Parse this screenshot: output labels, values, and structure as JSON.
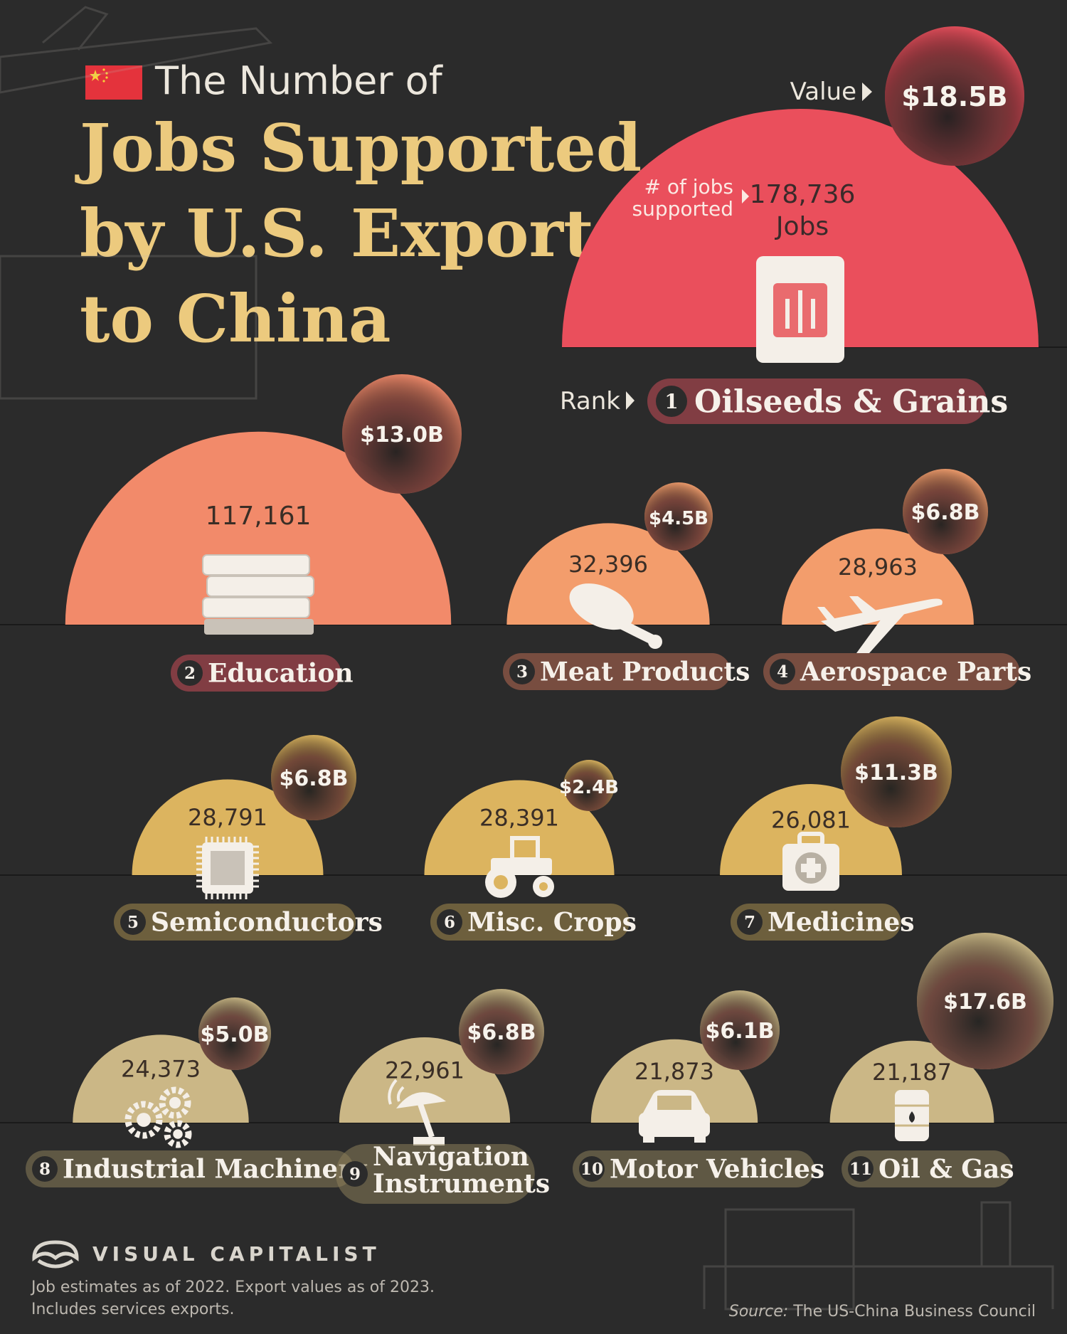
{
  "header": {
    "title_line1": "The Number of",
    "title_lines": [
      "Jobs Supported",
      "by U.S. Exports",
      "to China"
    ]
  },
  "legend": {
    "value_label": "Value",
    "jobs_label_line1": "# of jobs",
    "jobs_label_line2": "supported",
    "jobs_unit": "Jobs",
    "rank_label": "Rank"
  },
  "colors": {
    "background": "#2b2b2b",
    "tier_red": "#e8525d",
    "tier_orange": "#f39a6a",
    "tier_gold": "#d9b25e",
    "tier_sand": "#cbb786",
    "title_gold": "#ecca7e",
    "text_light": "#ece7dd",
    "text_dark": "#2b2b2b"
  },
  "chart_data": {
    "type": "bubble-semicircle",
    "title": "The Number of Jobs Supported by U.S. Exports to China",
    "items": [
      {
        "rank": 1,
        "name": "Oilseeds & Grains",
        "jobs": 178736,
        "jobs_label": "178,736",
        "value_label": "$18.5B",
        "value": 18.5,
        "icon": "grain-sack-icon",
        "color": "#ea4f5c"
      },
      {
        "rank": 2,
        "name": "Education",
        "jobs": 117161,
        "jobs_label": "117,161",
        "value_label": "$13.0B",
        "value": 13.0,
        "icon": "books-icon",
        "color": "#f28a6a"
      },
      {
        "rank": 3,
        "name": "Meat Products",
        "jobs": 32396,
        "jobs_label": "32,396",
        "value_label": "$4.5B",
        "value": 4.5,
        "icon": "drumstick-icon",
        "color": "#f39d6c"
      },
      {
        "rank": 4,
        "name": "Aerospace Parts",
        "jobs": 28963,
        "jobs_label": "28,963",
        "value_label": "$6.8B",
        "value": 6.8,
        "icon": "airplane-icon",
        "color": "#f39d6c"
      },
      {
        "rank": 5,
        "name": "Semiconductors",
        "jobs": 28791,
        "jobs_label": "28,791",
        "value_label": "$6.8B",
        "value": 6.8,
        "icon": "chip-icon",
        "color": "#dcb45f"
      },
      {
        "rank": 6,
        "name": "Misc. Crops",
        "jobs": 28391,
        "jobs_label": "28,391",
        "value_label": "$2.4B",
        "value": 2.4,
        "icon": "tractor-icon",
        "color": "#dcb45f"
      },
      {
        "rank": 7,
        "name": "Medicines",
        "jobs": 26081,
        "jobs_label": "26,081",
        "value_label": "$11.3B",
        "value": 11.3,
        "icon": "medkit-icon",
        "color": "#dcb45f"
      },
      {
        "rank": 8,
        "name": "Industrial Machinery",
        "jobs": 24373,
        "jobs_label": "24,373",
        "value_label": "$5.0B",
        "value": 5.0,
        "icon": "gears-icon",
        "color": "#cbb786"
      },
      {
        "rank": 9,
        "name": "Navigation Instruments",
        "name_lines": [
          "Navigation",
          "Instruments"
        ],
        "jobs": 22961,
        "jobs_label": "22,961",
        "value_label": "$6.8B",
        "value": 6.8,
        "icon": "satellite-dish-icon",
        "color": "#cbb786"
      },
      {
        "rank": 10,
        "name": "Motor Vehicles",
        "jobs": 21873,
        "jobs_label": "21,873",
        "value_label": "$6.1B",
        "value": 6.1,
        "icon": "car-icon",
        "color": "#cbb786"
      },
      {
        "rank": 11,
        "name": "Oil & Gas",
        "jobs": 21187,
        "jobs_label": "21,187",
        "value_label": "$17.6B",
        "value": 17.6,
        "icon": "oil-barrel-icon",
        "color": "#cbb786"
      }
    ]
  },
  "footer": {
    "brand": "VISUAL CAPITALIST",
    "note_line1": "Job estimates as of 2022. Export values as of 2023.",
    "note_line2": "Includes services exports.",
    "source_label": "Source:",
    "source_text": "The US-China Business Council"
  }
}
